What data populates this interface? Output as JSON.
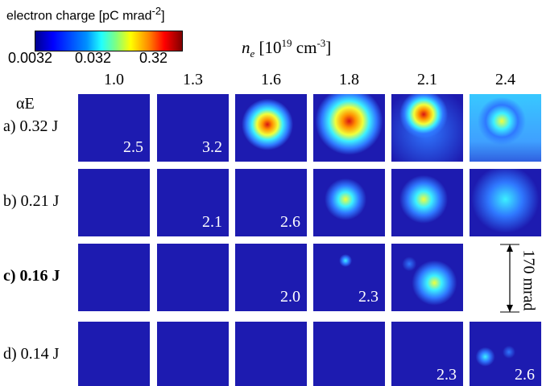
{
  "colorbar": {
    "title": "electron charge [pC mrad",
    "title_exponent": "-2",
    "title_close": "]",
    "ticks": [
      "0.0032",
      "0.032",
      "0.32"
    ]
  },
  "density_label": {
    "symbol": "n",
    "subscript": "e",
    "unit_open": "[10",
    "unit_exponent": "19",
    "unit_mid": " cm",
    "unit_mid_exponent": "-3",
    "unit_close": "]"
  },
  "columns": [
    "1.0",
    "1.3",
    "1.6",
    "1.8",
    "2.1",
    "2.4"
  ],
  "energy_label": "αE",
  "rows": [
    {
      "label": "a) 0.32 J",
      "cells": [
        "2.5",
        "3.2",
        null,
        null,
        null,
        null
      ]
    },
    {
      "label": "b) 0.21 J",
      "cells": [
        null,
        "2.1",
        "2.6",
        null,
        null,
        null
      ]
    },
    {
      "label": "c) 0.16 J",
      "cells": [
        null,
        null,
        "2.0",
        "2.3",
        null,
        null
      ]
    },
    {
      "label": "d) 0.14 J",
      "cells": [
        null,
        null,
        null,
        null,
        "2.3",
        "2.6"
      ]
    }
  ],
  "scale_bar": "170 mrad"
}
